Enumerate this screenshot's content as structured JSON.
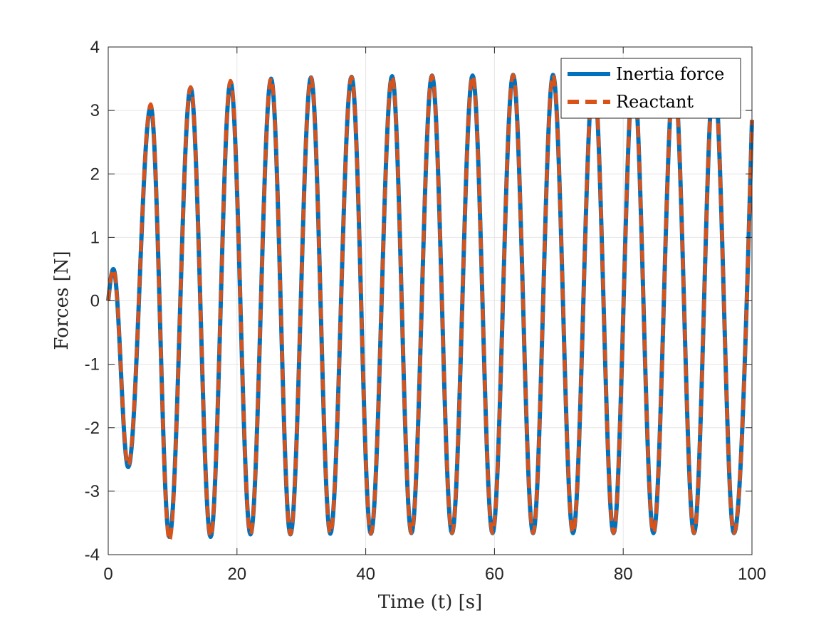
{
  "chart_data": {
    "type": "line",
    "title": "",
    "xlabel": "Time (t) [s]",
    "ylabel": "Forces [N]",
    "xlim": [
      0,
      100
    ],
    "ylim": [
      -4,
      4
    ],
    "x_ticks": [
      0,
      20,
      40,
      60,
      80,
      100
    ],
    "y_ticks": [
      -4,
      -3,
      -2,
      -1,
      0,
      1,
      2,
      3,
      4
    ],
    "x_tick_labels": [
      "0",
      "20",
      "40",
      "60",
      "80",
      "100"
    ],
    "y_tick_labels": [
      "-4",
      "-3",
      "-2",
      "-1",
      "0",
      "1",
      "2",
      "3",
      "4"
    ],
    "grid": true,
    "legend_position": "top-right",
    "series": [
      {
        "name": "Inertia force",
        "color": "#0072BD",
        "style": "solid",
        "x": [
          0,
          0.8,
          3.1,
          6.6,
          9.5,
          12.8,
          15.9,
          19.0,
          22.1,
          25.3,
          28.3,
          31.5,
          34.5,
          37.8,
          40.8,
          44.1,
          47.1,
          50.3,
          53.4,
          56.6,
          59.7,
          62.9,
          66.0,
          69.1,
          72.2,
          75.4,
          78.5,
          81.6,
          84.7,
          87.9,
          91.0,
          94.1,
          97.2,
          100
        ],
        "y": [
          0,
          0.5,
          -2.62,
          3.06,
          -3.72,
          3.36,
          -3.72,
          3.45,
          -3.68,
          3.5,
          -3.68,
          3.52,
          -3.67,
          3.53,
          -3.67,
          3.54,
          -3.66,
          3.55,
          -3.66,
          3.55,
          -3.66,
          3.56,
          -3.66,
          3.56,
          -3.66,
          3.56,
          -3.66,
          3.56,
          -3.66,
          3.56,
          -3.66,
          3.56,
          -3.66,
          2.85
        ]
      },
      {
        "name": "Reactant",
        "color": "#D95319",
        "style": "dashed",
        "x": [
          0,
          0.8,
          3.1,
          6.6,
          9.5,
          12.8,
          15.9,
          19.0,
          22.1,
          25.3,
          28.3,
          31.5,
          34.5,
          37.8,
          40.8,
          44.1,
          47.1,
          50.3,
          53.4,
          56.6,
          59.7,
          62.9,
          66.0,
          69.1,
          72.2,
          75.4,
          78.5,
          81.6,
          84.7,
          87.9,
          91.0,
          94.1,
          97.2,
          100
        ],
        "y": [
          0,
          0.5,
          -2.6,
          3.1,
          -3.78,
          3.37,
          -3.72,
          3.47,
          -3.68,
          3.51,
          -3.68,
          3.52,
          -3.67,
          3.53,
          -3.67,
          3.54,
          -3.66,
          3.55,
          -3.66,
          3.55,
          -3.66,
          3.56,
          -3.66,
          3.56,
          -3.66,
          3.56,
          -3.66,
          3.56,
          -3.66,
          3.56,
          -3.66,
          3.56,
          -3.66,
          2.85
        ]
      }
    ]
  }
}
